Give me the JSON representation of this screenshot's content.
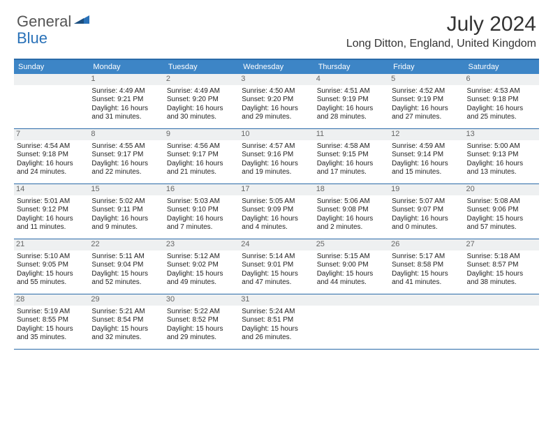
{
  "logo": {
    "general": "General",
    "blue": "Blue"
  },
  "title": "July 2024",
  "location": "Long Ditton, England, United Kingdom",
  "day_headers": [
    "Sunday",
    "Monday",
    "Tuesday",
    "Wednesday",
    "Thursday",
    "Friday",
    "Saturday"
  ],
  "colors": {
    "header_bg": "#3d85c6",
    "header_text": "#ffffff",
    "border": "#2a6aa8",
    "daynum_bg": "#eef0f1",
    "logo_blue": "#2971b8"
  },
  "weeks": [
    [
      {
        "num": "",
        "sunrise": "",
        "sunset": "",
        "daylight": ""
      },
      {
        "num": "1",
        "sunrise": "Sunrise: 4:49 AM",
        "sunset": "Sunset: 9:21 PM",
        "daylight": "Daylight: 16 hours and 31 minutes."
      },
      {
        "num": "2",
        "sunrise": "Sunrise: 4:49 AM",
        "sunset": "Sunset: 9:20 PM",
        "daylight": "Daylight: 16 hours and 30 minutes."
      },
      {
        "num": "3",
        "sunrise": "Sunrise: 4:50 AM",
        "sunset": "Sunset: 9:20 PM",
        "daylight": "Daylight: 16 hours and 29 minutes."
      },
      {
        "num": "4",
        "sunrise": "Sunrise: 4:51 AM",
        "sunset": "Sunset: 9:19 PM",
        "daylight": "Daylight: 16 hours and 28 minutes."
      },
      {
        "num": "5",
        "sunrise": "Sunrise: 4:52 AM",
        "sunset": "Sunset: 9:19 PM",
        "daylight": "Daylight: 16 hours and 27 minutes."
      },
      {
        "num": "6",
        "sunrise": "Sunrise: 4:53 AM",
        "sunset": "Sunset: 9:18 PM",
        "daylight": "Daylight: 16 hours and 25 minutes."
      }
    ],
    [
      {
        "num": "7",
        "sunrise": "Sunrise: 4:54 AM",
        "sunset": "Sunset: 9:18 PM",
        "daylight": "Daylight: 16 hours and 24 minutes."
      },
      {
        "num": "8",
        "sunrise": "Sunrise: 4:55 AM",
        "sunset": "Sunset: 9:17 PM",
        "daylight": "Daylight: 16 hours and 22 minutes."
      },
      {
        "num": "9",
        "sunrise": "Sunrise: 4:56 AM",
        "sunset": "Sunset: 9:17 PM",
        "daylight": "Daylight: 16 hours and 21 minutes."
      },
      {
        "num": "10",
        "sunrise": "Sunrise: 4:57 AM",
        "sunset": "Sunset: 9:16 PM",
        "daylight": "Daylight: 16 hours and 19 minutes."
      },
      {
        "num": "11",
        "sunrise": "Sunrise: 4:58 AM",
        "sunset": "Sunset: 9:15 PM",
        "daylight": "Daylight: 16 hours and 17 minutes."
      },
      {
        "num": "12",
        "sunrise": "Sunrise: 4:59 AM",
        "sunset": "Sunset: 9:14 PM",
        "daylight": "Daylight: 16 hours and 15 minutes."
      },
      {
        "num": "13",
        "sunrise": "Sunrise: 5:00 AM",
        "sunset": "Sunset: 9:13 PM",
        "daylight": "Daylight: 16 hours and 13 minutes."
      }
    ],
    [
      {
        "num": "14",
        "sunrise": "Sunrise: 5:01 AM",
        "sunset": "Sunset: 9:12 PM",
        "daylight": "Daylight: 16 hours and 11 minutes."
      },
      {
        "num": "15",
        "sunrise": "Sunrise: 5:02 AM",
        "sunset": "Sunset: 9:11 PM",
        "daylight": "Daylight: 16 hours and 9 minutes."
      },
      {
        "num": "16",
        "sunrise": "Sunrise: 5:03 AM",
        "sunset": "Sunset: 9:10 PM",
        "daylight": "Daylight: 16 hours and 7 minutes."
      },
      {
        "num": "17",
        "sunrise": "Sunrise: 5:05 AM",
        "sunset": "Sunset: 9:09 PM",
        "daylight": "Daylight: 16 hours and 4 minutes."
      },
      {
        "num": "18",
        "sunrise": "Sunrise: 5:06 AM",
        "sunset": "Sunset: 9:08 PM",
        "daylight": "Daylight: 16 hours and 2 minutes."
      },
      {
        "num": "19",
        "sunrise": "Sunrise: 5:07 AM",
        "sunset": "Sunset: 9:07 PM",
        "daylight": "Daylight: 16 hours and 0 minutes."
      },
      {
        "num": "20",
        "sunrise": "Sunrise: 5:08 AM",
        "sunset": "Sunset: 9:06 PM",
        "daylight": "Daylight: 15 hours and 57 minutes."
      }
    ],
    [
      {
        "num": "21",
        "sunrise": "Sunrise: 5:10 AM",
        "sunset": "Sunset: 9:05 PM",
        "daylight": "Daylight: 15 hours and 55 minutes."
      },
      {
        "num": "22",
        "sunrise": "Sunrise: 5:11 AM",
        "sunset": "Sunset: 9:04 PM",
        "daylight": "Daylight: 15 hours and 52 minutes."
      },
      {
        "num": "23",
        "sunrise": "Sunrise: 5:12 AM",
        "sunset": "Sunset: 9:02 PM",
        "daylight": "Daylight: 15 hours and 49 minutes."
      },
      {
        "num": "24",
        "sunrise": "Sunrise: 5:14 AM",
        "sunset": "Sunset: 9:01 PM",
        "daylight": "Daylight: 15 hours and 47 minutes."
      },
      {
        "num": "25",
        "sunrise": "Sunrise: 5:15 AM",
        "sunset": "Sunset: 9:00 PM",
        "daylight": "Daylight: 15 hours and 44 minutes."
      },
      {
        "num": "26",
        "sunrise": "Sunrise: 5:17 AM",
        "sunset": "Sunset: 8:58 PM",
        "daylight": "Daylight: 15 hours and 41 minutes."
      },
      {
        "num": "27",
        "sunrise": "Sunrise: 5:18 AM",
        "sunset": "Sunset: 8:57 PM",
        "daylight": "Daylight: 15 hours and 38 minutes."
      }
    ],
    [
      {
        "num": "28",
        "sunrise": "Sunrise: 5:19 AM",
        "sunset": "Sunset: 8:55 PM",
        "daylight": "Daylight: 15 hours and 35 minutes."
      },
      {
        "num": "29",
        "sunrise": "Sunrise: 5:21 AM",
        "sunset": "Sunset: 8:54 PM",
        "daylight": "Daylight: 15 hours and 32 minutes."
      },
      {
        "num": "30",
        "sunrise": "Sunrise: 5:22 AM",
        "sunset": "Sunset: 8:52 PM",
        "daylight": "Daylight: 15 hours and 29 minutes."
      },
      {
        "num": "31",
        "sunrise": "Sunrise: 5:24 AM",
        "sunset": "Sunset: 8:51 PM",
        "daylight": "Daylight: 15 hours and 26 minutes."
      },
      {
        "num": "",
        "sunrise": "",
        "sunset": "",
        "daylight": ""
      },
      {
        "num": "",
        "sunrise": "",
        "sunset": "",
        "daylight": ""
      },
      {
        "num": "",
        "sunrise": "",
        "sunset": "",
        "daylight": ""
      }
    ]
  ]
}
